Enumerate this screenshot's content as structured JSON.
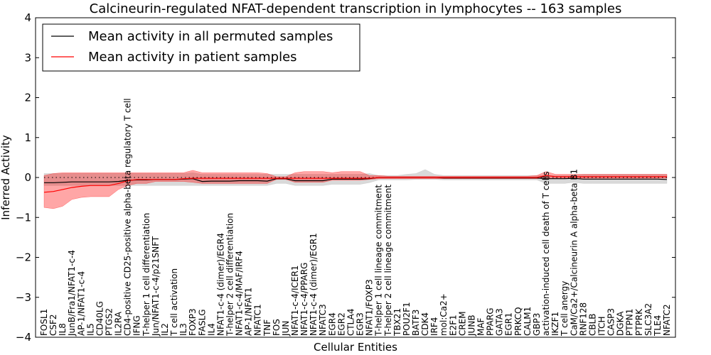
{
  "chart_data": {
    "type": "line",
    "title": "Calcineurin-regulated NFAT-dependent transcription in lymphocytes -- 163 samples",
    "xlabel": "Cellular Entities",
    "ylabel": "Inferred Activity",
    "ylim": [
      -4,
      4
    ],
    "yticks": [
      -4,
      -3,
      -2,
      -1,
      0,
      1,
      2,
      3,
      4
    ],
    "ytick_labels": [
      "−4",
      "−3",
      "−2",
      "−1",
      "0",
      "1",
      "2",
      "3",
      "4"
    ],
    "grid": false,
    "legend_position": "top-left",
    "categories": [
      "FOSL1",
      "CSF2",
      "IL8",
      "JunB/Fra1/NFAT1-c-4",
      "AP-1/NFAT1-c-4",
      "IL5",
      "CD40LG",
      "PTGS2",
      "IL2RA",
      "CD4-positive CD25-positive alpha-beta regulatory T cell",
      "IFNG",
      "T-helper 1 cell differentiation",
      "Jun/NFAT1-c-4/p21SNFT",
      "IL2",
      "T cell activation",
      "IL3",
      "FOXP3",
      "FASLG",
      "IL4",
      "NFAT1-c-4 (dimer)/EGR4",
      "T-helper 2 cell differentiation",
      "NFAT1-c-4/MAF/IRF4",
      "AP-1/NFAT1",
      "NFATC1",
      "TNF",
      "FOS",
      "JUN",
      "NFAT1-c-4/ICER1",
      "NFAT1-c-4/PPARG",
      "NFAT1-c-4 (dimer)/EGR1",
      "NFATC3",
      "EGR4",
      "EGR2",
      "CTLA4",
      "EGR3",
      "NFAT1/FOXP3",
      "T-helper 1 cell lineage commitment",
      "T-helper 2 cell lineage commitment",
      "TBX21",
      "POU2F1",
      "BATF3",
      "CDK4",
      "IRF4",
      "mol:Ca2+",
      "E2F1",
      "CREM",
      "JUNB",
      "MAF",
      "PPARG",
      "GATA3",
      "EGR1",
      "PRKCQ",
      "CALM1",
      "GBP3",
      "activation-induced cell death of T cells",
      "IKZF1",
      "T cell anergy",
      "CaM/Ca2+/Calcineurin A alpha-beta B1",
      "RNF128",
      "CBLB",
      "ITCH",
      "CASP3",
      "DGKA",
      "PTPN1",
      "PTPRK",
      "SLC3A2",
      "TLE4",
      "NFATC2"
    ],
    "series": [
      {
        "name": "Mean activity in all permuted samples",
        "color": "#000000",
        "values": [
          -0.13,
          -0.13,
          -0.12,
          -0.11,
          -0.11,
          -0.11,
          -0.11,
          -0.11,
          -0.1,
          -0.07,
          -0.06,
          -0.06,
          -0.05,
          -0.05,
          -0.05,
          -0.04,
          -0.03,
          -0.1,
          -0.09,
          -0.09,
          -0.09,
          -0.08,
          -0.08,
          -0.08,
          -0.09,
          -0.03,
          -0.03,
          -0.08,
          -0.08,
          -0.08,
          -0.08,
          -0.04,
          -0.04,
          -0.04,
          -0.04,
          -0.03,
          0.0,
          0.0,
          0.0,
          0.0,
          0.0,
          0.0,
          0.0,
          -0.01,
          -0.01,
          -0.01,
          -0.01,
          -0.01,
          -0.01,
          -0.01,
          -0.01,
          -0.01,
          -0.01,
          -0.01,
          -0.03,
          -0.03,
          -0.03,
          -0.02,
          -0.04,
          -0.04,
          -0.04,
          -0.04,
          -0.04,
          -0.04,
          -0.04,
          -0.04,
          -0.04,
          -0.05
        ],
        "band_lower": [
          -0.2,
          -0.2,
          -0.2,
          -0.2,
          -0.2,
          -0.2,
          -0.2,
          -0.2,
          -0.2,
          -0.2,
          -0.2,
          -0.2,
          -0.2,
          -0.2,
          -0.2,
          -0.2,
          -0.2,
          -0.2,
          -0.2,
          -0.2,
          -0.2,
          -0.2,
          -0.2,
          -0.2,
          -0.2,
          -0.15,
          -0.15,
          -0.2,
          -0.2,
          -0.2,
          -0.2,
          -0.17,
          -0.17,
          -0.17,
          -0.17,
          -0.13,
          -0.06,
          -0.06,
          -0.06,
          -0.06,
          -0.05,
          -0.05,
          -0.05,
          -0.06,
          -0.06,
          -0.06,
          -0.06,
          -0.06,
          -0.06,
          -0.06,
          -0.06,
          -0.06,
          -0.06,
          -0.06,
          -0.15,
          -0.15,
          -0.15,
          -0.12,
          -0.15,
          -0.15,
          -0.15,
          -0.15,
          -0.15,
          -0.15,
          -0.15,
          -0.15,
          -0.15,
          -0.15
        ],
        "band_upper": [
          0.1,
          0.1,
          0.1,
          0.1,
          0.1,
          0.1,
          0.1,
          0.1,
          0.1,
          0.1,
          0.1,
          0.1,
          0.1,
          0.1,
          0.1,
          0.1,
          0.12,
          0.08,
          0.08,
          0.08,
          0.08,
          0.08,
          0.08,
          0.08,
          0.08,
          0.08,
          0.08,
          0.08,
          0.08,
          0.08,
          0.08,
          0.08,
          0.08,
          0.08,
          0.08,
          0.1,
          0.05,
          0.05,
          0.05,
          0.08,
          0.1,
          0.2,
          0.08,
          0.05,
          0.05,
          0.05,
          0.05,
          0.05,
          0.05,
          0.05,
          0.05,
          0.05,
          0.05,
          0.05,
          0.05,
          0.05,
          0.05,
          0.05,
          0.08,
          0.08,
          0.08,
          0.08,
          0.08,
          0.08,
          0.08,
          0.08,
          0.08,
          0.08
        ]
      },
      {
        "name": "Mean activity in patient samples",
        "color": "#ff0000",
        "values": [
          -0.37,
          -0.35,
          -0.3,
          -0.25,
          -0.22,
          -0.2,
          -0.2,
          -0.2,
          -0.15,
          -0.08,
          -0.05,
          -0.05,
          -0.05,
          -0.05,
          -0.05,
          -0.03,
          -0.02,
          -0.02,
          -0.02,
          -0.02,
          -0.02,
          -0.02,
          -0.02,
          -0.02,
          -0.02,
          -0.02,
          -0.02,
          -0.02,
          -0.02,
          -0.02,
          -0.02,
          -0.02,
          -0.02,
          -0.02,
          -0.02,
          -0.02,
          0.0,
          0.0,
          0.0,
          0.0,
          0.0,
          0.0,
          0.0,
          0.0,
          0.0,
          0.0,
          0.0,
          0.0,
          0.0,
          0.0,
          0.0,
          0.0,
          0.0,
          0.0,
          0.05,
          0.02,
          0.02,
          0.02,
          0.02,
          0.02,
          0.02,
          0.02,
          0.02,
          0.02,
          0.02,
          0.02,
          0.02,
          0.02
        ],
        "band_lower": [
          -0.75,
          -0.78,
          -0.72,
          -0.55,
          -0.5,
          -0.48,
          -0.48,
          -0.48,
          -0.3,
          -0.2,
          -0.15,
          -0.15,
          -0.1,
          -0.1,
          -0.1,
          -0.1,
          -0.12,
          -0.15,
          -0.15,
          -0.15,
          -0.15,
          -0.15,
          -0.15,
          -0.15,
          -0.15,
          -0.05,
          -0.05,
          -0.12,
          -0.12,
          -0.12,
          -0.12,
          -0.07,
          -0.07,
          -0.07,
          -0.07,
          -0.05,
          -0.03,
          -0.03,
          -0.03,
          -0.03,
          -0.03,
          -0.03,
          -0.03,
          -0.03,
          -0.03,
          -0.03,
          -0.03,
          -0.03,
          -0.03,
          -0.03,
          -0.03,
          -0.03,
          -0.03,
          -0.03,
          -0.02,
          -0.02,
          -0.02,
          -0.02,
          -0.02,
          -0.02,
          -0.02,
          -0.02,
          -0.02,
          -0.02,
          -0.02,
          -0.02,
          -0.02,
          -0.02
        ],
        "band_upper": [
          0.05,
          0.1,
          0.12,
          0.12,
          0.12,
          0.12,
          0.12,
          0.12,
          0.12,
          0.12,
          0.12,
          0.12,
          0.12,
          0.12,
          0.12,
          0.12,
          0.18,
          0.12,
          0.12,
          0.12,
          0.12,
          0.12,
          0.12,
          0.12,
          0.1,
          0.02,
          0.02,
          0.12,
          0.15,
          0.15,
          0.15,
          0.12,
          0.15,
          0.15,
          0.15,
          0.05,
          0.05,
          0.03,
          0.03,
          0.03,
          0.03,
          0.03,
          0.03,
          0.03,
          0.03,
          0.03,
          0.03,
          0.03,
          0.03,
          0.03,
          0.03,
          0.03,
          0.03,
          0.05,
          0.15,
          0.08,
          0.08,
          0.08,
          0.08,
          0.08,
          0.08,
          0.08,
          0.08,
          0.08,
          0.08,
          0.08,
          0.08,
          0.08
        ]
      }
    ]
  }
}
